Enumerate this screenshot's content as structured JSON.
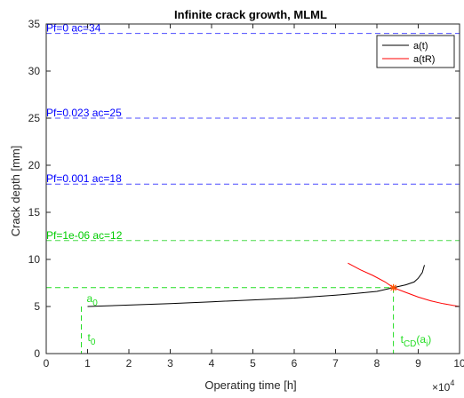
{
  "chart_data": {
    "type": "line",
    "title": "Infinite crack growth, MLML",
    "xlabel": "Operating time [h]",
    "ylabel": "Crack depth [mm]",
    "x_multiplier_label": "×10",
    "x_multiplier_exp": "4",
    "xlim": [
      0,
      10
    ],
    "ylim": [
      0,
      35
    ],
    "x_ticks": [
      "0",
      "1",
      "2",
      "3",
      "4",
      "5",
      "6",
      "7",
      "8",
      "9",
      "10"
    ],
    "y_ticks": [
      "0",
      "5",
      "10",
      "15",
      "20",
      "25",
      "30",
      "35"
    ],
    "grid": false,
    "legend_position": "top-right",
    "series": [
      {
        "name": "a(t)",
        "color": "#000000",
        "x": [
          1.0,
          2.0,
          3.0,
          4.0,
          5.0,
          6.0,
          7.0,
          7.5,
          8.0,
          8.4,
          8.7,
          8.9,
          9.0,
          9.1,
          9.15
        ],
        "y": [
          5.0,
          5.15,
          5.3,
          5.5,
          5.7,
          5.9,
          6.2,
          6.4,
          6.6,
          7.0,
          7.3,
          7.6,
          8.0,
          8.6,
          9.4
        ]
      },
      {
        "name": "a(tR)",
        "color": "#ff0000",
        "x": [
          7.3,
          7.6,
          7.9,
          8.2,
          8.4,
          8.7,
          9.0,
          9.3,
          9.6,
          10.0
        ],
        "y": [
          9.6,
          8.9,
          8.3,
          7.6,
          7.0,
          6.5,
          6.0,
          5.6,
          5.3,
          5.0
        ]
      }
    ],
    "thresholds": [
      {
        "label": "Pf=0 ac=34",
        "y": 34,
        "color": "#0000ff"
      },
      {
        "label": "Pf=0.023 ac=25",
        "y": 25,
        "color": "#0000ff"
      },
      {
        "label": "Pf=0.001 ac=18",
        "y": 18,
        "color": "#0000ff"
      },
      {
        "label": "Pf=1e-06 ac=12",
        "y": 12,
        "color": "#00cc00"
      }
    ],
    "a0": {
      "label": "a",
      "sub": "0",
      "x": 0.85,
      "y": 5.0
    },
    "t0": {
      "label": "t",
      "sub": "0",
      "x": 0.85
    },
    "intersection": {
      "x": 8.4,
      "y": 7.0,
      "color": "#ff5500",
      "label": "t",
      "sub": "CD",
      "paren": "(a",
      "paren_sub": "i",
      "paren_close": ")"
    },
    "guide_color": "#22dd22"
  }
}
